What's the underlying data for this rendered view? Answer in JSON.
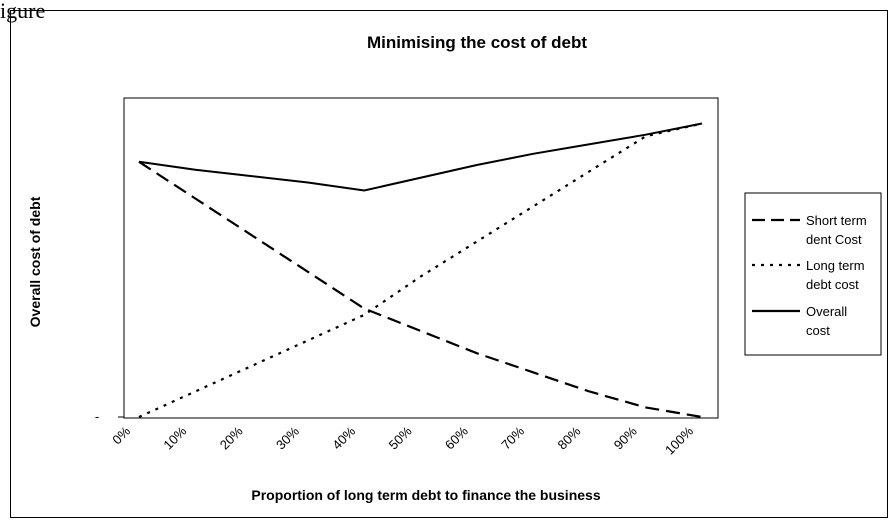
{
  "figure_label": "igure",
  "chart_data": {
    "type": "line",
    "title": "Minimising the cost of debt",
    "xlabel": "Proportion of long term debt to finance the business",
    "ylabel": "Overall cost of debt",
    "y_tick_label": "-",
    "categories": [
      "0%",
      "10%",
      "20%",
      "30%",
      "40%",
      "50%",
      "60%",
      "70%",
      "80%",
      "90%",
      "100%"
    ],
    "ylim": [
      0,
      10
    ],
    "grid": false,
    "legend_position": "right",
    "series": [
      {
        "name": "Short term dent Cost",
        "style": "dashed",
        "values": [
          8.0,
          6.85,
          5.7,
          4.55,
          3.4,
          2.7,
          2.0,
          1.4,
          0.8,
          0.3,
          0.0
        ]
      },
      {
        "name": "Long term debt cost",
        "style": "dotted",
        "values": [
          0.0,
          0.8,
          1.6,
          2.4,
          3.2,
          4.4,
          5.5,
          6.6,
          7.7,
          8.8,
          9.2
        ]
      },
      {
        "name": "Overall cost",
        "style": "solid",
        "values": [
          8.0,
          7.75,
          7.55,
          7.35,
          7.1,
          7.5,
          7.9,
          8.25,
          8.55,
          8.85,
          9.2
        ]
      }
    ],
    "legend": [
      {
        "lines": [
          "Short term",
          "dent Cost"
        ],
        "style": "dashed"
      },
      {
        "lines": [
          "Long term",
          "debt cost"
        ],
        "style": "dotted"
      },
      {
        "lines": [
          "Overall",
          "cost"
        ],
        "style": "solid"
      }
    ]
  }
}
